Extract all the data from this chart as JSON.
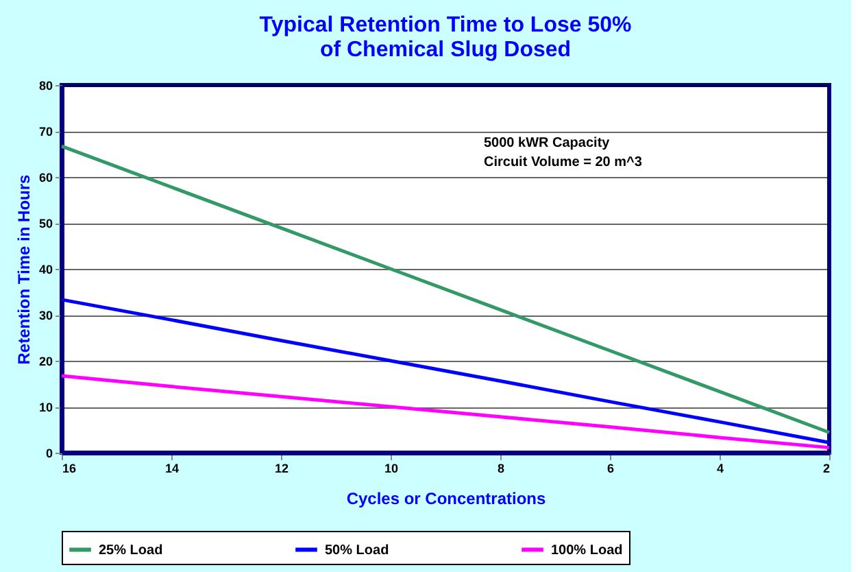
{
  "chart_data": {
    "type": "line",
    "title": [
      "Typical Retention Time to Lose 50%",
      "of Chemical Slug Dosed"
    ],
    "xlabel": "Cycles or Concentrations",
    "ylabel": "Retention Time in Hours",
    "x": [
      16,
      14,
      12,
      10,
      8,
      6,
      4,
      2
    ],
    "series": [
      {
        "name": "25% Load",
        "color": "#339966",
        "values": [
          66.7,
          57.8,
          48.9,
          40,
          31.1,
          22.2,
          13.3,
          4.4
        ]
      },
      {
        "name": "50% Load",
        "color": "#0000ff",
        "values": [
          33.3,
          28.9,
          24.4,
          20,
          15.6,
          11.1,
          6.7,
          2.2
        ]
      },
      {
        "name": "100% Load",
        "color": "#ff00ff",
        "values": [
          16.7,
          14.4,
          12.2,
          10,
          7.8,
          5.6,
          3.3,
          1.1
        ]
      }
    ],
    "xlim": [
      16,
      2
    ],
    "xticks": [
      16,
      14,
      12,
      10,
      8,
      6,
      4,
      2
    ],
    "ylim": [
      0,
      80
    ],
    "yticks": [
      0,
      10,
      20,
      30,
      40,
      50,
      60,
      70,
      80
    ],
    "grid": "y",
    "legend": "bottom",
    "marker": "none",
    "line_style": "solid",
    "annotations": [
      "5000 kWR  Capacity",
      "Circuit Volume = 20 m^3"
    ]
  }
}
